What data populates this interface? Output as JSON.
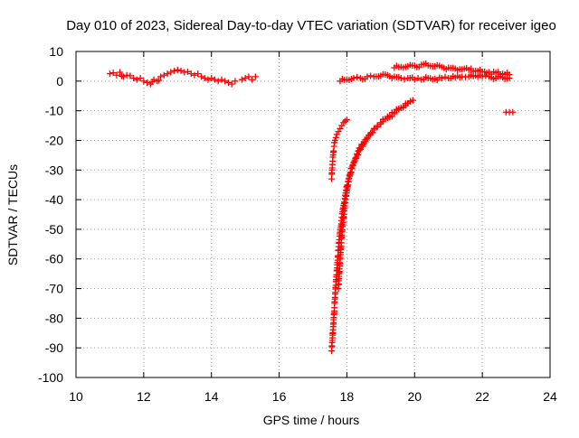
{
  "chart_data": {
    "type": "scatter",
    "title": "Day 010 of 2023, Sidereal Day-to-day VTEC variation (SDTVAR) for receiver igeo",
    "xlabel": "GPS time / hours",
    "ylabel": "SDTVAR / TECUs",
    "xlim": [
      10,
      24
    ],
    "ylim": [
      -100,
      10
    ],
    "x_ticks": [
      "10",
      "12",
      "14",
      "16",
      "18",
      "20",
      "22",
      "24"
    ],
    "y_ticks": [
      "-100",
      "-90",
      "-80",
      "-70",
      "-60",
      "-50",
      "-40",
      "-30",
      "-20",
      "-10",
      "0",
      "10"
    ],
    "grid": true,
    "legend": "none",
    "marker": "plus",
    "color": "#ff0000",
    "series": [
      {
        "x": [
          11.0,
          11.1,
          11.2,
          11.3,
          11.4,
          11.5,
          11.6,
          11.7,
          11.8,
          11.9,
          12.0,
          12.1,
          12.2,
          12.3,
          12.4,
          12.5,
          12.6,
          12.7,
          12.8,
          12.9,
          13.0,
          13.1,
          13.2,
          13.3,
          13.4,
          13.5,
          13.6,
          13.7,
          13.8,
          13.9,
          14.0,
          14.1,
          14.2,
          14.3,
          14.4,
          14.5,
          14.6,
          14.7
        ],
        "y": [
          2.5,
          2.8,
          2.0,
          3.0,
          1.5,
          2.0,
          1.8,
          1.0,
          0.5,
          1.0,
          0.0,
          -0.5,
          -1.0,
          0.5,
          0.0,
          1.5,
          2.0,
          2.5,
          3.0,
          3.5,
          3.8,
          3.5,
          3.0,
          3.2,
          2.5,
          2.0,
          2.5,
          1.5,
          1.0,
          0.5,
          1.0,
          0.5,
          0.0,
          0.5,
          0.0,
          -0.5,
          -1.0,
          0.0
        ]
      },
      {
        "x": [
          14.9,
          15.0,
          15.1,
          15.2,
          15.3
        ],
        "y": [
          0.5,
          1.0,
          1.5,
          0.5,
          1.5
        ]
      },
      {
        "x": [
          17.55,
          17.56,
          17.58,
          17.6,
          17.62,
          17.65,
          17.7,
          17.75,
          17.8,
          17.85,
          17.9,
          17.95,
          18.0
        ],
        "y": [
          -33,
          -30,
          -27,
          -24,
          -22,
          -20,
          -18,
          -17,
          -16,
          -15,
          -14,
          -13.5,
          -13
        ]
      },
      {
        "x": [
          17.55,
          17.6,
          17.65,
          17.7,
          17.75,
          17.8,
          17.85,
          17.9,
          17.95,
          18.0,
          18.05,
          18.1,
          18.15,
          18.2,
          18.3,
          18.4,
          18.5,
          18.6,
          18.7,
          18.8,
          18.9,
          19.0,
          19.2,
          19.4,
          19.6,
          19.8,
          19.95
        ],
        "y": [
          -91,
          -82,
          -73,
          -64,
          -57,
          -51,
          -46,
          -42,
          -38.5,
          -35.5,
          -33,
          -31,
          -29,
          -27.5,
          -25,
          -23,
          -21,
          -19.5,
          -18,
          -16.5,
          -15.5,
          -14.5,
          -12.5,
          -11,
          -9,
          -7.5,
          -6.5
        ]
      },
      {
        "x": [
          17.75,
          17.8,
          17.85,
          17.9,
          17.95,
          18.0,
          18.05,
          18.1,
          18.15,
          18.2,
          18.3,
          18.4,
          18.5,
          18.6,
          18.7,
          18.8,
          18.9,
          19.0,
          19.2,
          19.4,
          19.6,
          19.8,
          19.95
        ],
        "y": [
          -70,
          -60,
          -52,
          -46,
          -41,
          -37,
          -34,
          -31.5,
          -29.5,
          -27.5,
          -24.5,
          -22.5,
          -20.5,
          -19,
          -17.5,
          -16,
          -15,
          -14,
          -12,
          -10.5,
          -9,
          -7.5,
          -6.5
        ]
      },
      {
        "x": [
          17.8,
          18.0,
          18.2,
          18.4,
          18.6,
          18.8,
          19.0,
          19.2,
          19.4,
          19.6,
          19.8,
          20.0,
          20.2,
          20.4,
          20.6,
          20.8,
          21.0,
          21.2,
          21.4,
          21.6,
          21.8,
          22.0,
          22.2,
          22.4,
          22.6,
          22.8
        ],
        "y": [
          0.0,
          0.5,
          1.0,
          1.0,
          1.5,
          1.5,
          1.8,
          2.0,
          1.5,
          1.0,
          1.0,
          0.5,
          0.5,
          1.0,
          0.8,
          1.0,
          1.0,
          1.2,
          1.5,
          1.5,
          1.8,
          1.5,
          1.5,
          1.0,
          1.2,
          1.0
        ]
      },
      {
        "x": [
          19.4,
          19.6,
          19.8,
          20.0,
          20.2,
          20.4,
          20.6,
          20.8,
          21.0,
          21.2,
          21.4,
          21.6,
          21.8,
          22.0,
          22.2,
          22.4,
          22.6,
          22.8
        ],
        "y": [
          4.5,
          4.8,
          5.0,
          5.2,
          5.5,
          5.3,
          5.0,
          4.8,
          4.5,
          4.2,
          4.0,
          3.8,
          3.5,
          3.2,
          3.0,
          2.8,
          2.5,
          2.2
        ]
      },
      {
        "x": [
          22.7,
          22.8,
          22.9
        ],
        "y": [
          -10.5,
          -10.5,
          -10.5
        ]
      }
    ]
  }
}
